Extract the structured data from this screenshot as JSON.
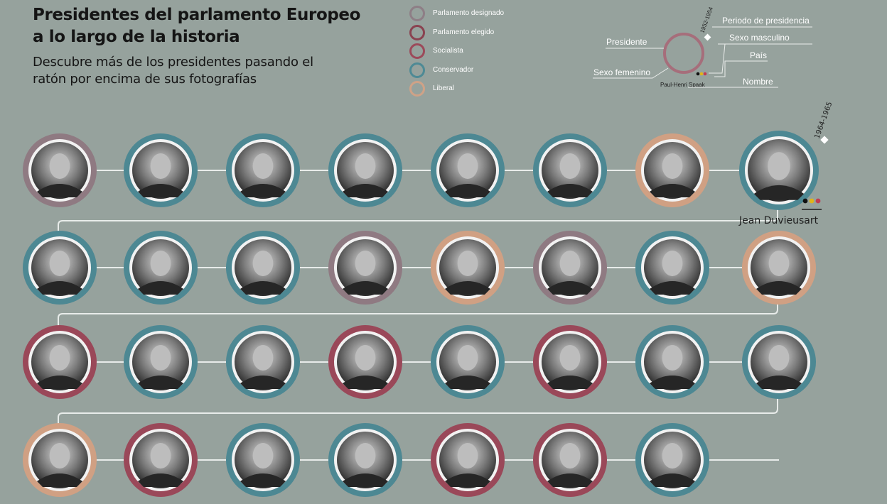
{
  "header": {
    "title": "Presidentes del parlamento Europeo a lo largo de la historia",
    "subtitle": "Descubre más de los presidentes pasando el ratón por encima de sus fotografías"
  },
  "legend": [
    {
      "label": "Parlamento designado",
      "color": "#8e7e86"
    },
    {
      "label": "Parlamento elegido",
      "color": "#8a4250"
    },
    {
      "label": "Socialista",
      "color": "#9c4a5a"
    },
    {
      "label": "Conservador",
      "color": "#4e8a95"
    },
    {
      "label": "Liberal",
      "color": "#cfa287"
    }
  ],
  "key": {
    "president": "Presidente",
    "female": "Sexo femenino",
    "period": "Periodo de presidencia",
    "male": "Sexo masculino",
    "country": "País",
    "name": "Nombre",
    "example_name": "Paul-Henri Spaak",
    "example_period": "1952-1954"
  },
  "hovered": {
    "name": "Jean Duvieusart",
    "period": "1964-1965",
    "flag": [
      "#111111",
      "#e0b51a",
      "#c23c52"
    ]
  },
  "colors": {
    "socialist": "#9a4859",
    "conservative": "#4d8893",
    "liberal": "#d0a083",
    "designated": "#8f7a82",
    "elected": "#8a4250",
    "line": "#e8ecea"
  },
  "rows": [
    [
      "designated",
      "conservative",
      "conservative",
      "conservative",
      "conservative",
      "conservative",
      "liberal",
      "conservative"
    ],
    [
      "conservative",
      "conservative",
      "conservative",
      "designated",
      "liberal",
      "designated",
      "conservative",
      "liberal"
    ],
    [
      "socialist",
      "conservative",
      "conservative",
      "socialist",
      "conservative",
      "socialist",
      "conservative",
      "conservative"
    ],
    [
      "liberal",
      "socialist",
      "conservative",
      "conservative",
      "socialist",
      "socialist",
      "conservative"
    ]
  ]
}
